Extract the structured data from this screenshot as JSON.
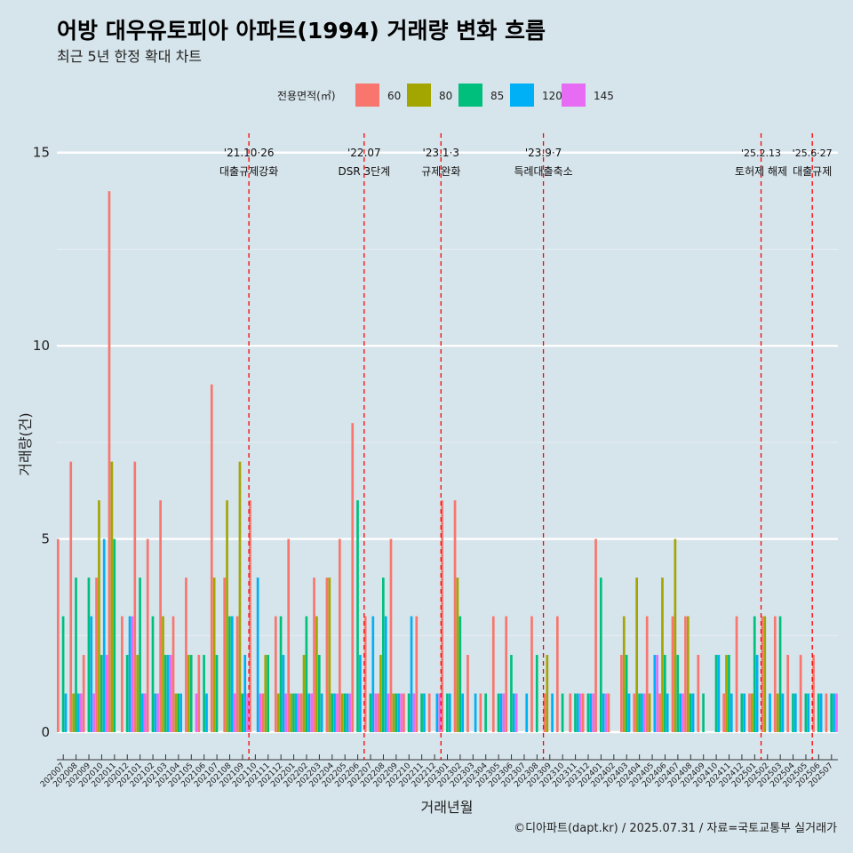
{
  "chart_data": {
    "type": "bar",
    "title": "어방 대우유토피아 아파트(1994) 거래량 변화 흐름",
    "subtitle": "최근 5년 한정 확대 차트",
    "xlabel": "거래년월",
    "ylabel": "거래량(건)",
    "caption": "©디아파트(dapt.kr) / 2025.07.31 / 자료=국토교통부 실거래가",
    "legend_title": "전용면적(㎡)",
    "legend_position": "top",
    "ylim": [
      0,
      15.5
    ],
    "yticks": [
      0,
      5,
      10,
      15
    ],
    "grid": true,
    "categories": [
      "202007",
      "202008",
      "202009",
      "202010",
      "202011",
      "202012",
      "202101",
      "202102",
      "202103",
      "202104",
      "202105",
      "202106",
      "202107",
      "202108",
      "202109",
      "202110",
      "202111",
      "202112",
      "202201",
      "202202",
      "202203",
      "202204",
      "202205",
      "202206",
      "202207",
      "202208",
      "202209",
      "202210",
      "202211",
      "202212",
      "202301",
      "202302",
      "202303",
      "202304",
      "202305",
      "202306",
      "202307",
      "202308",
      "202309",
      "202310",
      "202311",
      "202312",
      "202401",
      "202402",
      "202403",
      "202404",
      "202405",
      "202406",
      "202407",
      "202408",
      "202409",
      "202410",
      "202411",
      "202412",
      "202501",
      "202502",
      "202503",
      "202504",
      "202505",
      "202506",
      "202507"
    ],
    "series": [
      {
        "name": "60",
        "color": "#f8766d",
        "values": [
          5,
          7,
          2,
          4,
          14,
          3,
          7,
          5,
          6,
          3,
          4,
          2,
          9,
          4,
          3,
          6,
          1,
          3,
          5,
          1,
          4,
          4,
          5,
          8,
          3,
          1,
          5,
          1,
          3,
          1,
          6,
          6,
          2,
          1,
          3,
          3,
          0,
          3,
          1,
          3,
          1,
          1,
          5,
          1,
          2,
          1,
          3,
          1,
          3,
          3,
          2,
          0,
          1,
          3,
          1,
          3,
          3,
          2,
          2,
          2,
          1
        ]
      },
      {
        "name": "80",
        "color": "#a3a500",
        "values": [
          0,
          1,
          0,
          6,
          7,
          0,
          2,
          0,
          3,
          1,
          2,
          0,
          4,
          6,
          7,
          0,
          2,
          1,
          1,
          2,
          3,
          4,
          1,
          0,
          0,
          2,
          1,
          0,
          0,
          0,
          0,
          4,
          0,
          0,
          0,
          0,
          0,
          0,
          2,
          0,
          0,
          0,
          0,
          0,
          3,
          4,
          1,
          4,
          5,
          3,
          0,
          0,
          2,
          0,
          1,
          3,
          1,
          0,
          0,
          0,
          0
        ]
      },
      {
        "name": "85",
        "color": "#00bf7d",
        "values": [
          3,
          4,
          4,
          2,
          5,
          2,
          4,
          3,
          2,
          1,
          2,
          2,
          2,
          3,
          1,
          0,
          2,
          3,
          1,
          3,
          2,
          1,
          1,
          6,
          1,
          4,
          1,
          1,
          1,
          0,
          1,
          3,
          0,
          1,
          1,
          2,
          0,
          2,
          0,
          1,
          1,
          1,
          4,
          0,
          2,
          1,
          0,
          2,
          2,
          1,
          1,
          2,
          2,
          1,
          3,
          0,
          3,
          1,
          1,
          1,
          1
        ]
      },
      {
        "name": "120",
        "color": "#00b0f6",
        "values": [
          1,
          1,
          3,
          5,
          0,
          3,
          1,
          1,
          2,
          1,
          0,
          1,
          0,
          3,
          2,
          4,
          0,
          2,
          1,
          1,
          1,
          1,
          1,
          2,
          3,
          3,
          1,
          3,
          1,
          1,
          1,
          1,
          1,
          0,
          1,
          1,
          1,
          0,
          1,
          0,
          1,
          1,
          1,
          0,
          1,
          1,
          2,
          1,
          1,
          1,
          0,
          2,
          1,
          1,
          2,
          1,
          1,
          1,
          1,
          1,
          1
        ]
      },
      {
        "name": "145",
        "color": "#e76bf3",
        "values": [
          0,
          1,
          1,
          2,
          0,
          3,
          1,
          1,
          2,
          0,
          1,
          0,
          0,
          1,
          1,
          1,
          0,
          1,
          1,
          1,
          0,
          1,
          1,
          0,
          1,
          1,
          1,
          1,
          0,
          1,
          0,
          0,
          0,
          0,
          1,
          1,
          0,
          0,
          0,
          0,
          1,
          1,
          1,
          0,
          0,
          1,
          2,
          0,
          1,
          0,
          0,
          0,
          0,
          0,
          0,
          0,
          0,
          0,
          0,
          0,
          1
        ]
      }
    ],
    "annotations": [
      {
        "after_category": "202109",
        "label_date": "'21.10·26",
        "label_event": "대출규제강화"
      },
      {
        "after_category": "202206",
        "label_date": "'22.07",
        "label_event": "DSR 3단계"
      },
      {
        "after_category": "202212",
        "label_date": "'23.1·3",
        "label_event": "규제완화"
      },
      {
        "after_category": "202308",
        "label_date": "'23.9·7",
        "label_event": "특례대출축소"
      },
      {
        "after_category": "202501",
        "label_date": "'25.2.13",
        "label_event": "토허제 해제"
      },
      {
        "after_category": "202505",
        "label_date": "'25.6·27",
        "label_event": "대출규제"
      }
    ],
    "annotation_color": "#ff0000"
  }
}
